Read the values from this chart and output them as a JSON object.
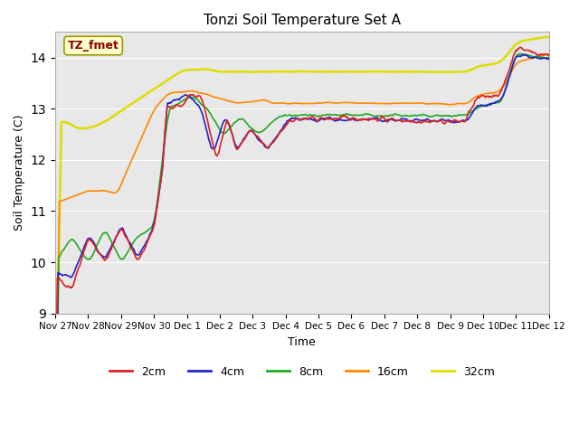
{
  "title": "Tonzi Soil Temperature Set A",
  "xlabel": "Time",
  "ylabel": "Soil Temperature (C)",
  "ylim": [
    9.0,
    14.5
  ],
  "annotation": "TZ_fmet",
  "annotation_color": "#8b0000",
  "annotation_bg": "#ffffcc",
  "annotation_border": "#999900",
  "fig_color": "#ffffff",
  "plot_bg": "#e8e8e8",
  "series": {
    "2cm": {
      "color": "#dd2222",
      "lw": 1.2
    },
    "4cm": {
      "color": "#2222cc",
      "lw": 1.2
    },
    "8cm": {
      "color": "#22aa22",
      "lw": 1.2
    },
    "16cm": {
      "color": "#ff8800",
      "lw": 1.2
    },
    "32cm": {
      "color": "#dddd00",
      "lw": 1.8
    }
  },
  "xtick_labels": [
    "Nov 27",
    "Nov 28",
    "Nov 29",
    "Nov 30",
    "Dec 1",
    "Dec 2",
    "Dec 3",
    "Dec 4",
    "Dec 5",
    "Dec 6",
    "Dec 7",
    "Dec 8",
    "Dec 9",
    "Dec 10",
    "Dec 11",
    "Dec 12"
  ],
  "xtick_positions": [
    0,
    48,
    96,
    144,
    192,
    240,
    288,
    336,
    384,
    432,
    480,
    528,
    576,
    624,
    672,
    720
  ]
}
